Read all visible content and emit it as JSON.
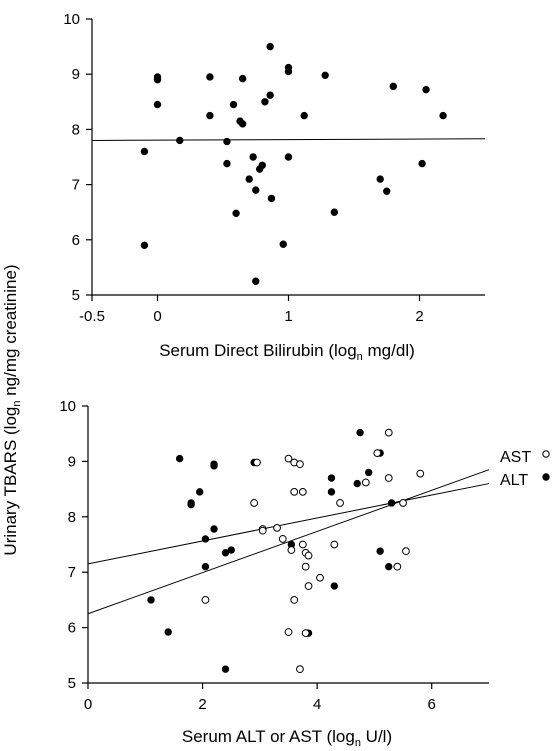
{
  "shared_ylabel": "Urinary TBARS (logn ng/mg creatinine)",
  "chart_data": [
    {
      "type": "scatter",
      "title": "",
      "xlabel": "Serum Direct Bilirubin (logn mg/dl)",
      "ylabel": "Urinary TBARS (logn ng/mg creatinine)",
      "xlim": [
        -0.5,
        2.5
      ],
      "ylim": [
        5,
        10
      ],
      "xticks": [
        -0.5,
        0,
        1,
        2
      ],
      "xtick_labels": [
        "-0.5",
        "0",
        "1",
        "2"
      ],
      "yticks": [
        5,
        6,
        7,
        8,
        9,
        10
      ],
      "ytick_labels": [
        "5",
        "6",
        "7",
        "8",
        "9",
        "10"
      ],
      "series": [
        {
          "marker": "filled-circle",
          "color": "#000000",
          "points": [
            [
              -0.1,
              5.9
            ],
            [
              -0.1,
              7.6
            ],
            [
              0.0,
              8.95
            ],
            [
              0.0,
              8.9
            ],
            [
              0.0,
              8.45
            ],
            [
              0.17,
              7.8
            ],
            [
              0.4,
              8.95
            ],
            [
              0.4,
              8.25
            ],
            [
              0.53,
              7.78
            ],
            [
              0.53,
              7.38
            ],
            [
              0.58,
              8.45
            ],
            [
              0.6,
              6.48
            ],
            [
              0.63,
              8.15
            ],
            [
              0.65,
              8.1
            ],
            [
              0.65,
              8.92
            ],
            [
              0.7,
              7.1
            ],
            [
              0.73,
              7.5
            ],
            [
              0.75,
              6.9
            ],
            [
              0.75,
              5.25
            ],
            [
              0.78,
              7.28
            ],
            [
              0.8,
              7.35
            ],
            [
              0.82,
              8.5
            ],
            [
              0.86,
              9.5
            ],
            [
              0.86,
              8.62
            ],
            [
              0.87,
              6.75
            ],
            [
              0.96,
              5.92
            ],
            [
              1.0,
              9.12
            ],
            [
              1.0,
              9.05
            ],
            [
              1.0,
              7.5
            ],
            [
              1.12,
              8.25
            ],
            [
              1.28,
              8.98
            ],
            [
              1.35,
              6.5
            ],
            [
              1.7,
              7.1
            ],
            [
              1.75,
              6.88
            ],
            [
              1.8,
              8.78
            ],
            [
              2.02,
              7.38
            ],
            [
              2.05,
              8.72
            ],
            [
              2.18,
              8.25
            ]
          ]
        }
      ],
      "regression_lines": [
        {
          "name": "",
          "x": [
            -0.5,
            2.5
          ],
          "y": [
            7.8,
            7.83
          ]
        }
      ]
    },
    {
      "type": "scatter",
      "title": "",
      "xlabel": "Serum ALT or AST (logn U/l)",
      "ylabel": "Urinary TBARS (logn ng/mg creatinine)",
      "xlim": [
        0,
        7
      ],
      "ylim": [
        5,
        10
      ],
      "xticks": [
        0,
        2,
        4,
        6
      ],
      "xtick_labels": [
        "0",
        "2",
        "4",
        "6"
      ],
      "yticks": [
        5,
        6,
        7,
        8,
        9,
        10
      ],
      "ytick_labels": [
        "5",
        "6",
        "7",
        "8",
        "9",
        "10"
      ],
      "series": [
        {
          "name": "ALT",
          "marker": "filled-circle",
          "color": "#000000",
          "points": [
            [
              1.1,
              6.5
            ],
            [
              1.4,
              5.92
            ],
            [
              1.6,
              9.05
            ],
            [
              1.8,
              8.25
            ],
            [
              1.8,
              8.22
            ],
            [
              1.95,
              8.45
            ],
            [
              2.05,
              7.6
            ],
            [
              2.05,
              7.1
            ],
            [
              2.2,
              7.78
            ],
            [
              2.2,
              8.95
            ],
            [
              2.2,
              8.92
            ],
            [
              2.4,
              7.35
            ],
            [
              2.4,
              5.25
            ],
            [
              2.5,
              7.4
            ],
            [
              2.9,
              8.98
            ],
            [
              3.55,
              7.5
            ],
            [
              3.85,
              5.9
            ],
            [
              4.25,
              8.45
            ],
            [
              4.25,
              8.7
            ],
            [
              4.3,
              6.75
            ],
            [
              4.7,
              8.6
            ],
            [
              4.75,
              9.52
            ],
            [
              4.9,
              8.8
            ],
            [
              5.1,
              7.38
            ],
            [
              5.1,
              9.15
            ],
            [
              5.25,
              7.1
            ],
            [
              5.3,
              8.25
            ]
          ]
        },
        {
          "name": "AST",
          "marker": "open-circle",
          "color": "#000000",
          "points": [
            [
              2.05,
              6.5
            ],
            [
              2.9,
              8.25
            ],
            [
              2.95,
              8.98
            ],
            [
              3.05,
              7.78
            ],
            [
              3.05,
              7.75
            ],
            [
              3.3,
              7.8
            ],
            [
              3.4,
              7.6
            ],
            [
              3.5,
              5.92
            ],
            [
              3.5,
              9.05
            ],
            [
              3.55,
              7.4
            ],
            [
              3.6,
              8.45
            ],
            [
              3.6,
              6.5
            ],
            [
              3.6,
              8.98
            ],
            [
              3.7,
              5.25
            ],
            [
              3.7,
              8.95
            ],
            [
              3.75,
              8.45
            ],
            [
              3.75,
              7.5
            ],
            [
              3.8,
              7.35
            ],
            [
              3.8,
              7.1
            ],
            [
              3.8,
              5.9
            ],
            [
              3.85,
              6.75
            ],
            [
              3.85,
              7.3
            ],
            [
              4.05,
              6.9
            ],
            [
              4.3,
              7.5
            ],
            [
              4.4,
              8.25
            ],
            [
              4.85,
              8.62
            ],
            [
              5.05,
              9.15
            ],
            [
              5.25,
              8.7
            ],
            [
              5.25,
              9.52
            ],
            [
              5.4,
              7.1
            ],
            [
              5.5,
              8.25
            ],
            [
              5.55,
              7.38
            ],
            [
              5.8,
              8.78
            ]
          ]
        }
      ],
      "regression_lines": [
        {
          "name": "AST",
          "x": [
            0,
            7
          ],
          "y": [
            6.25,
            8.85
          ]
        },
        {
          "name": "ALT",
          "x": [
            0,
            7
          ],
          "y": [
            7.15,
            8.6
          ]
        }
      ],
      "legend": {
        "placement": "right of plot",
        "items": [
          {
            "label": "AST",
            "marker": "open-circle"
          },
          {
            "label": "ALT",
            "marker": "filled-circle"
          }
        ]
      }
    }
  ]
}
